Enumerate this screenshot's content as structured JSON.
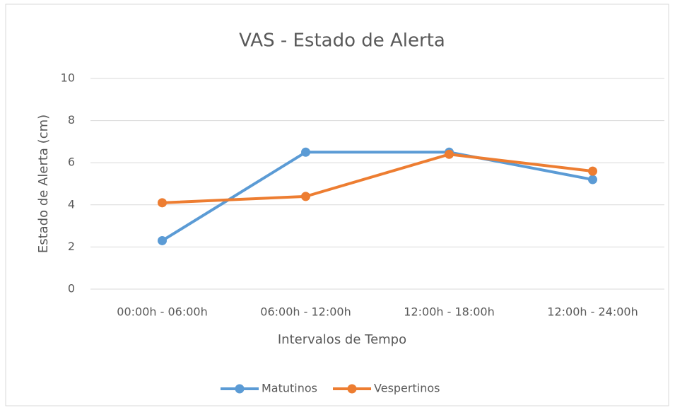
{
  "chart_data": {
    "type": "line",
    "title": "VAS - Estado de Alerta",
    "x_label": "Intervalos de Tempo",
    "y_label": "Estado de Alerta (cm)",
    "categories": [
      "00:00h - 06:00h",
      "06:00h - 12:00h",
      "12:00h - 18:00h",
      "12:00h - 24:00h"
    ],
    "series": [
      {
        "name": "Matutinos",
        "color": "#5b9bd5",
        "values": [
          2.3,
          6.5,
          6.5,
          5.2
        ]
      },
      {
        "name": "Vespertinos",
        "color": "#ed7d31",
        "values": [
          4.1,
          4.4,
          6.4,
          5.6
        ]
      }
    ],
    "ylim": [
      0,
      10
    ],
    "yticks": [
      0,
      2,
      4,
      6,
      8,
      10
    ],
    "grid": true,
    "legend": "bottom"
  }
}
